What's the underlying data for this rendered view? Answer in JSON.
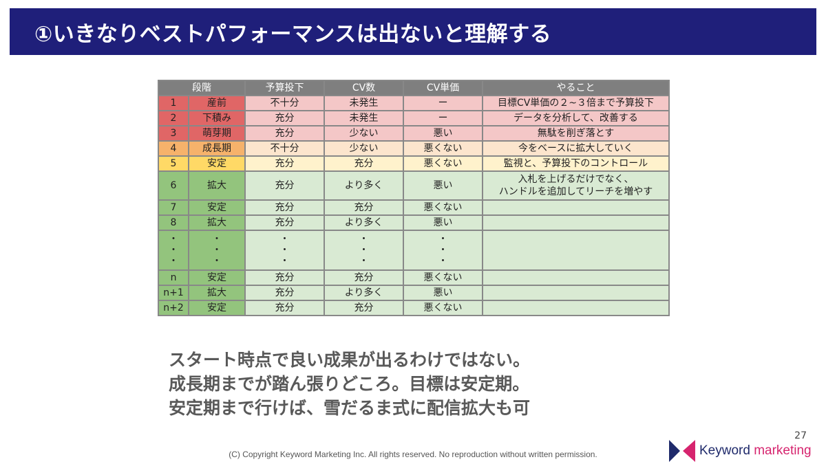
{
  "title": "①いきなりベストパフォーマンスは出ないと理解する",
  "table": {
    "headers": [
      "段階",
      "予算投下",
      "CV数",
      "CV単価",
      "やること"
    ],
    "rows": [
      {
        "no": "1",
        "stage": "産前",
        "budget": "不十分",
        "cv": "未発生",
        "cpa": "ー",
        "todo": "目標CV単価の２~３倍まで予算投下"
      },
      {
        "no": "2",
        "stage": "下積み",
        "budget": "充分",
        "cv": "未発生",
        "cpa": "ー",
        "todo": "データを分析して、改善する"
      },
      {
        "no": "3",
        "stage": "萌芽期",
        "budget": "充分",
        "cv": "少ない",
        "cpa": "悪い",
        "todo": "無駄を削ぎ落とす"
      },
      {
        "no": "4",
        "stage": "成長期",
        "budget": "不十分",
        "cv": "少ない",
        "cpa": "悪くない",
        "todo": "今をベースに拡大していく"
      },
      {
        "no": "5",
        "stage": "安定",
        "budget": "充分",
        "cv": "充分",
        "cpa": "悪くない",
        "todo": "監視と、予算投下のコントロール"
      },
      {
        "no": "6",
        "stage": "拡大",
        "budget": "充分",
        "cv": "より多く",
        "cpa": "悪い",
        "todo_line1": "入札を上げるだけでなく、",
        "todo_line2": "ハンドルを追加してリーチを増やす"
      },
      {
        "no": "7",
        "stage": "安定",
        "budget": "充分",
        "cv": "充分",
        "cpa": "悪くない",
        "todo": ""
      },
      {
        "no": "8",
        "stage": "拡大",
        "budget": "充分",
        "cv": "より多く",
        "cpa": "悪い",
        "todo": ""
      },
      {
        "no": "n",
        "stage": "安定",
        "budget": "充分",
        "cv": "充分",
        "cpa": "悪くない",
        "todo": ""
      },
      {
        "no": "n+1",
        "stage": "拡大",
        "budget": "充分",
        "cv": "より多く",
        "cpa": "悪い",
        "todo": ""
      },
      {
        "no": "n+2",
        "stage": "安定",
        "budget": "充分",
        "cv": "充分",
        "cpa": "悪くない",
        "todo": ""
      }
    ],
    "ellipsis": "・\n・\n・"
  },
  "message": {
    "line1": "スタート時点で良い成果が出るわけではない。",
    "line2": "成長期までが踏ん張りどころ。目標は安定期。",
    "line3": "安定期まで行けば、雪だるま式に配信拡大も可"
  },
  "page_number": "27",
  "copyright": "(C) Copyright Keyword Marketing Inc. All rights reserved. No reproduction without written permission.",
  "logo": {
    "word1": "Keyword",
    "word2": "marketing",
    "color_navy": "#1f2a6b",
    "color_pink": "#d6246e"
  },
  "colors": {
    "title_bg": "#1f1f7a",
    "header_bg": "#7f7f7f",
    "red": "#e06666",
    "red_light": "#f4c7c7",
    "orange": "#f6b26b",
    "orange_light": "#fce5cd",
    "yellow": "#ffd966",
    "yellow_light": "#fff2cc",
    "green": "#93c47d",
    "green_light": "#d9ead3"
  }
}
